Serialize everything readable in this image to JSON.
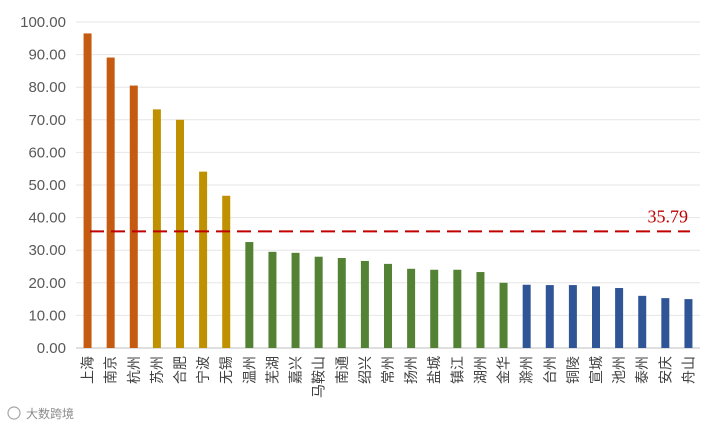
{
  "chart_data": {
    "type": "bar",
    "categories": [
      "上海",
      "南京",
      "杭州",
      "苏州",
      "合肥",
      "宁波",
      "无锡",
      "温州",
      "芜湖",
      "嘉兴",
      "马鞍山",
      "南通",
      "绍兴",
      "常州",
      "扬州",
      "盐城",
      "镇江",
      "湖州",
      "金华",
      "滁州",
      "台州",
      "铜陵",
      "宣城",
      "池州",
      "泰州",
      "安庆",
      "舟山"
    ],
    "values": [
      96.5,
      89.1,
      80.5,
      73.2,
      70.0,
      54.1,
      46.7,
      32.5,
      29.5,
      29.2,
      28.0,
      27.6,
      26.7,
      25.8,
      24.3,
      24.0,
      24.0,
      23.3,
      20.0,
      19.4,
      19.3,
      19.3,
      18.9,
      18.4,
      16.0,
      15.3,
      15.0
    ],
    "colors": [
      "#C55A11",
      "#C55A11",
      "#C55A11",
      "#BF9000",
      "#BF9000",
      "#BF9000",
      "#BF9000",
      "#548235",
      "#548235",
      "#548235",
      "#548235",
      "#548235",
      "#548235",
      "#548235",
      "#548235",
      "#548235",
      "#548235",
      "#548235",
      "#548235",
      "#2F5597",
      "#2F5597",
      "#2F5597",
      "#2F5597",
      "#2F5597",
      "#2F5597",
      "#2F5597",
      "#2F5597"
    ],
    "ylim": [
      0,
      100
    ],
    "yticks": [
      "0.00",
      "10.00",
      "20.00",
      "30.00",
      "40.00",
      "50.00",
      "60.00",
      "70.00",
      "80.00",
      "90.00",
      "100.00"
    ],
    "grid": true,
    "reference_line": {
      "value": 35.79,
      "label": "35.79",
      "color": "#C00000"
    },
    "title": "",
    "xlabel": "",
    "ylabel": ""
  },
  "watermark": {
    "text": "大数跨境"
  }
}
